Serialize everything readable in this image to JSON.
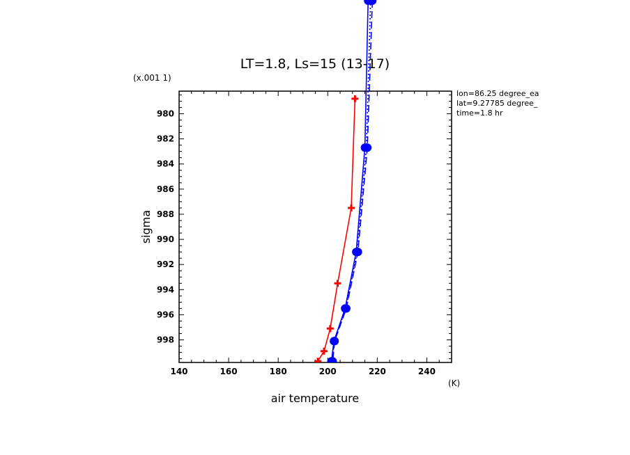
{
  "chart_data": {
    "type": "line",
    "title": "LT=1.8, Ls=15 (13-17)",
    "xlabel": "air temperature",
    "xunit": "(K)",
    "ylabel": "sigma",
    "yunit": "(x.001 1)",
    "xlim": [
      140,
      250
    ],
    "ylim": [
      978.2,
      999.8
    ],
    "y_inverted": true,
    "grid": false,
    "x_ticks": [
      140,
      160,
      180,
      200,
      220,
      240
    ],
    "y_ticks": [
      980,
      982,
      984,
      986,
      988,
      990,
      992,
      994,
      996,
      998
    ],
    "info_lines": [
      "lon=86.25 degree_ea",
      "lat=9.27785 degree_",
      "time=1.8 hr"
    ],
    "series": [
      {
        "color": "#ff0000",
        "marker": "plus",
        "line": "solid",
        "points": [
          [
            211.0,
            978.8
          ],
          [
            209.5,
            987.5
          ],
          [
            204.0,
            993.5
          ],
          [
            201.0,
            997.1
          ],
          [
            198.5,
            998.9
          ],
          [
            196.0,
            999.7
          ]
        ]
      },
      {
        "color": "#0000ff",
        "marker": "circle",
        "line": "solid",
        "points": [
          [
            216.3,
            971.0
          ],
          [
            215.0,
            982.7
          ],
          [
            211.5,
            991.0
          ],
          [
            207.0,
            995.5
          ],
          [
            202.5,
            998.1
          ],
          [
            201.5,
            999.7
          ]
        ]
      },
      {
        "color": "#0000ff",
        "marker": "circle",
        "line": "dashed",
        "points": [
          [
            218.0,
            971.0
          ],
          [
            216.0,
            982.7
          ],
          [
            212.2,
            991.0
          ],
          [
            207.5,
            995.5
          ],
          [
            202.8,
            998.1
          ],
          [
            202.0,
            999.7
          ]
        ]
      },
      {
        "color": "#0000ff",
        "marker": "circle",
        "line": "dotted",
        "points": [
          [
            217.3,
            971.0
          ],
          [
            215.6,
            982.7
          ],
          [
            211.9,
            991.0
          ],
          [
            207.3,
            995.5
          ],
          [
            202.6,
            998.1
          ],
          [
            201.8,
            999.7
          ]
        ]
      }
    ]
  }
}
